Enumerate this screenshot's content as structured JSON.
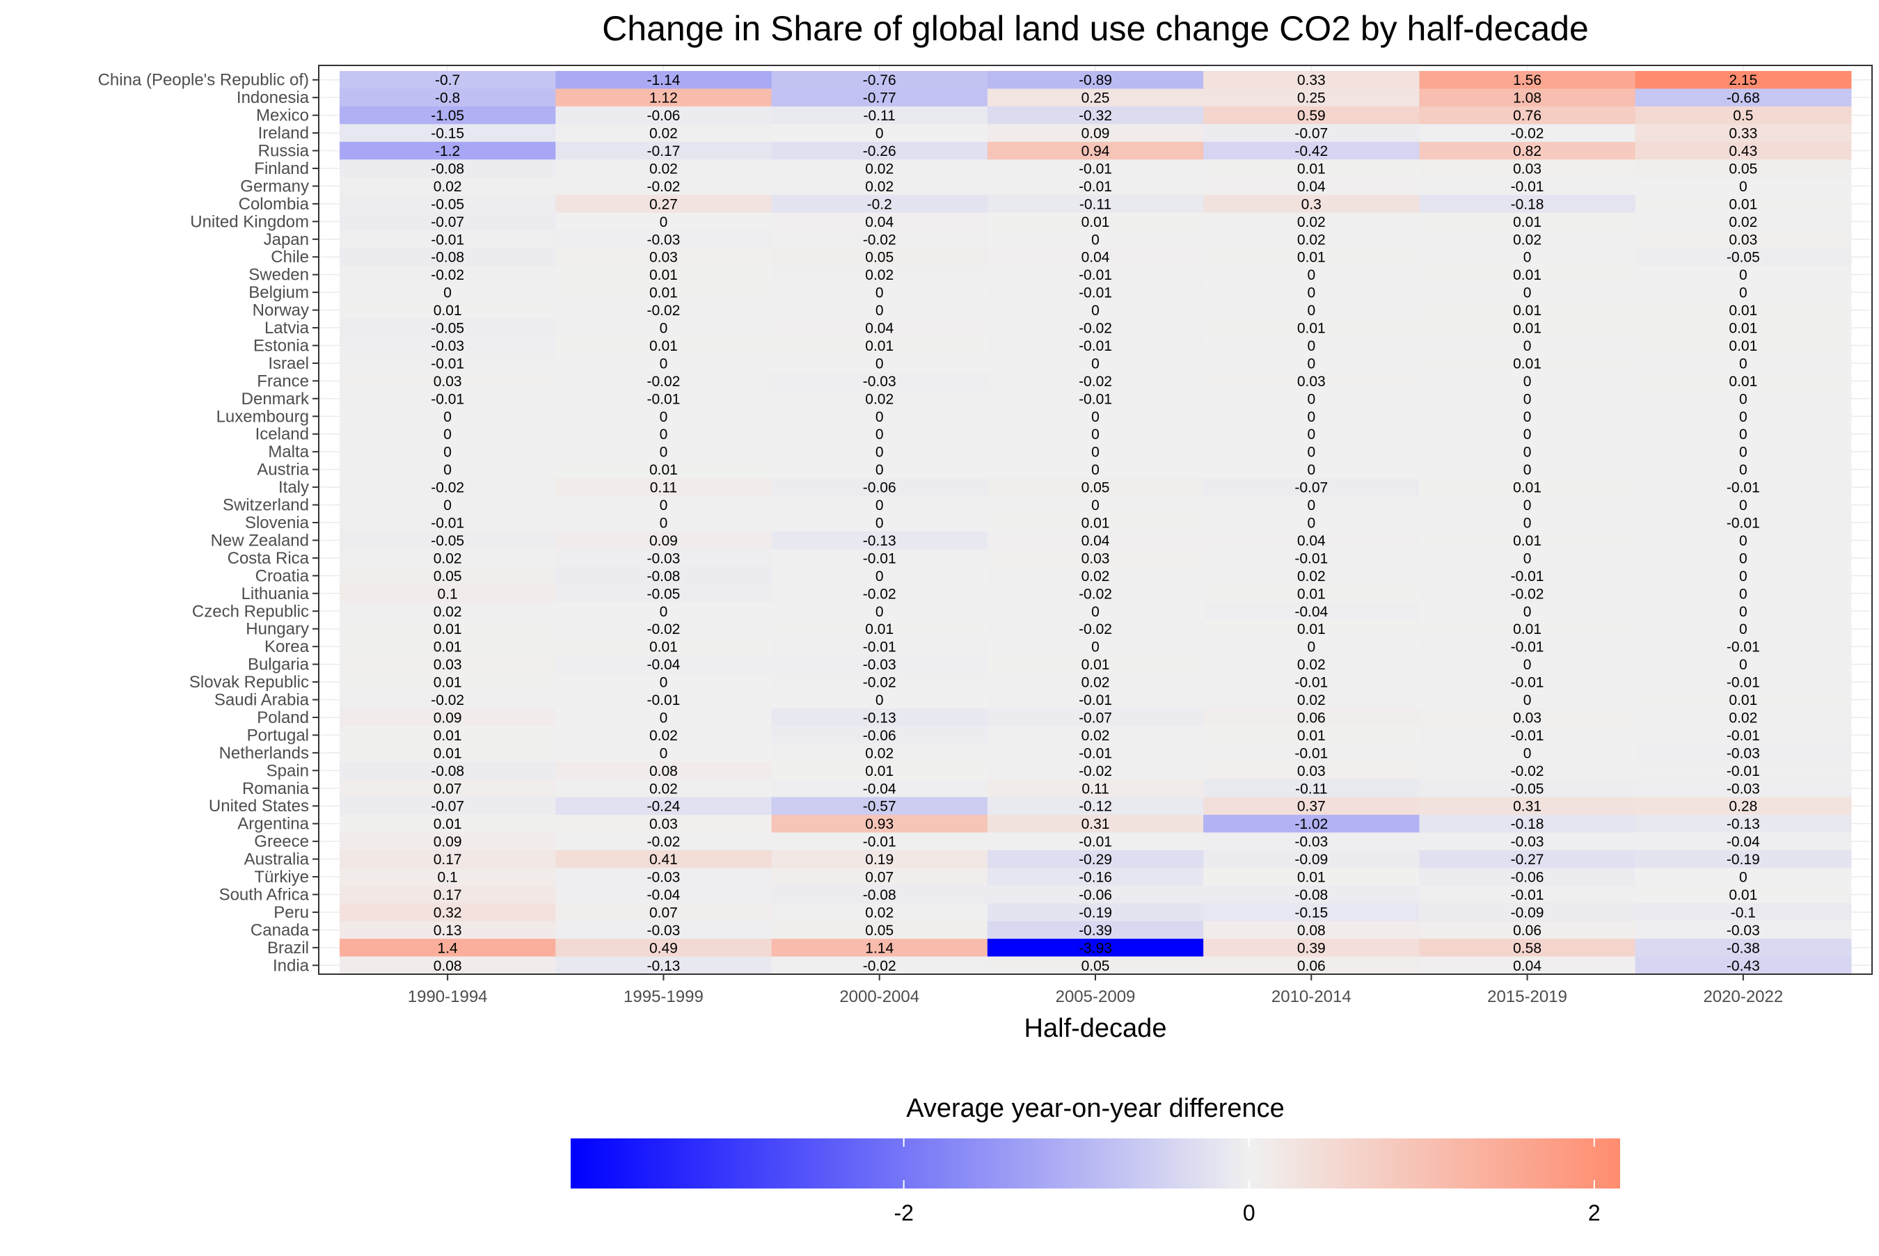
{
  "chart_data": {
    "type": "heatmap",
    "title": "Change in Share of global land use change CO2 by half-decade",
    "xlabel": "Half-decade",
    "ylabel": "",
    "x": [
      "1990-1994",
      "1995-1999",
      "2000-2004",
      "2005-2009",
      "2010-2014",
      "2015-2019",
      "2020-2022"
    ],
    "y": [
      "China (People's Republic of)",
      "Indonesia",
      "Mexico",
      "Ireland",
      "Russia",
      "Finland",
      "Germany",
      "Colombia",
      "United Kingdom",
      "Japan",
      "Chile",
      "Sweden",
      "Belgium",
      "Norway",
      "Latvia",
      "Estonia",
      "Israel",
      "France",
      "Denmark",
      "Luxembourg",
      "Iceland",
      "Malta",
      "Austria",
      "Italy",
      "Switzerland",
      "Slovenia",
      "New Zealand",
      "Costa Rica",
      "Croatia",
      "Lithuania",
      "Czech Republic",
      "Hungary",
      "Korea",
      "Bulgaria",
      "Slovak Republic",
      "Saudi Arabia",
      "Poland",
      "Portugal",
      "Netherlands",
      "Spain",
      "Romania",
      "United States",
      "Argentina",
      "Greece",
      "Australia",
      "Türkiye",
      "South Africa",
      "Peru",
      "Canada",
      "Brazil",
      "India"
    ],
    "values": [
      [
        -0.7,
        -1.14,
        -0.76,
        -0.89,
        0.33,
        1.56,
        2.15
      ],
      [
        -0.8,
        1.12,
        -0.77,
        0.25,
        0.25,
        1.08,
        -0.68
      ],
      [
        -1.05,
        -0.06,
        -0.11,
        -0.32,
        0.59,
        0.76,
        0.5
      ],
      [
        -0.15,
        0.02,
        0,
        0.09,
        -0.07,
        -0.02,
        0.33
      ],
      [
        -1.2,
        -0.17,
        -0.26,
        0.94,
        -0.42,
        0.82,
        0.43
      ],
      [
        -0.08,
        0.02,
        0.02,
        -0.01,
        0.01,
        0.03,
        0.05
      ],
      [
        0.02,
        -0.02,
        0.02,
        -0.01,
        0.04,
        -0.01,
        0
      ],
      [
        -0.05,
        0.27,
        -0.2,
        -0.11,
        0.3,
        -0.18,
        0.01
      ],
      [
        -0.07,
        0,
        0.04,
        0.01,
        0.02,
        0.01,
        0.02
      ],
      [
        -0.01,
        -0.03,
        -0.02,
        0,
        0.02,
        0.02,
        0.03
      ],
      [
        -0.08,
        0.03,
        0.05,
        0.04,
        0.01,
        0,
        -0.05
      ],
      [
        -0.02,
        0.01,
        0.02,
        -0.01,
        0,
        0.01,
        0
      ],
      [
        0,
        0.01,
        0,
        -0.01,
        0,
        0,
        0
      ],
      [
        0.01,
        -0.02,
        0,
        0,
        0,
        0.01,
        0.01
      ],
      [
        -0.05,
        0,
        0.04,
        -0.02,
        0.01,
        0.01,
        0.01
      ],
      [
        -0.03,
        0.01,
        0.01,
        -0.01,
        0,
        0,
        0.01
      ],
      [
        -0.01,
        0,
        0,
        0,
        0,
        0.01,
        0
      ],
      [
        0.03,
        -0.02,
        -0.03,
        -0.02,
        0.03,
        0,
        0.01
      ],
      [
        -0.01,
        -0.01,
        0.02,
        -0.01,
        0,
        0,
        0
      ],
      [
        0,
        0,
        0,
        0,
        0,
        0,
        0
      ],
      [
        0,
        0,
        0,
        0,
        0,
        0,
        0
      ],
      [
        0,
        0,
        0,
        0,
        0,
        0,
        0
      ],
      [
        0,
        0.01,
        0,
        0,
        0,
        0,
        0
      ],
      [
        -0.02,
        0.11,
        -0.06,
        0.05,
        -0.07,
        0.01,
        -0.01
      ],
      [
        0,
        0,
        0,
        0,
        0,
        0,
        0
      ],
      [
        -0.01,
        0,
        0,
        0.01,
        0,
        0,
        -0.01
      ],
      [
        -0.05,
        0.09,
        -0.13,
        0.04,
        0.04,
        0.01,
        0
      ],
      [
        0.02,
        -0.03,
        -0.01,
        0.03,
        -0.01,
        0,
        0
      ],
      [
        0.05,
        -0.08,
        0,
        0.02,
        0.02,
        -0.01,
        0
      ],
      [
        0.1,
        -0.05,
        -0.02,
        -0.02,
        0.01,
        -0.02,
        0
      ],
      [
        0.02,
        0,
        0,
        0,
        -0.04,
        0,
        0
      ],
      [
        0.01,
        -0.02,
        0.01,
        -0.02,
        0.01,
        0.01,
        0
      ],
      [
        0.01,
        0.01,
        -0.01,
        0,
        0,
        -0.01,
        -0.01
      ],
      [
        0.03,
        -0.04,
        -0.03,
        0.01,
        0.02,
        0,
        0
      ],
      [
        0.01,
        0,
        -0.02,
        0.02,
        -0.01,
        -0.01,
        -0.01
      ],
      [
        -0.02,
        -0.01,
        0,
        -0.01,
        0.02,
        0,
        0.01
      ],
      [
        0.09,
        0,
        -0.13,
        -0.07,
        0.06,
        0.03,
        0.02
      ],
      [
        0.01,
        0.02,
        -0.06,
        0.02,
        0.01,
        -0.01,
        -0.01
      ],
      [
        0.01,
        0,
        0.02,
        -0.01,
        -0.01,
        0,
        -0.03
      ],
      [
        -0.08,
        0.08,
        0.01,
        -0.02,
        0.03,
        -0.02,
        -0.01
      ],
      [
        0.07,
        0.02,
        -0.04,
        0.11,
        -0.11,
        -0.05,
        -0.03
      ],
      [
        -0.07,
        -0.24,
        -0.57,
        -0.12,
        0.37,
        0.31,
        0.28
      ],
      [
        0.01,
        0.03,
        0.93,
        0.31,
        -1.02,
        -0.18,
        -0.13
      ],
      [
        0.09,
        -0.02,
        -0.01,
        -0.01,
        -0.03,
        -0.03,
        -0.04
      ],
      [
        0.17,
        0.41,
        0.19,
        -0.29,
        -0.09,
        -0.27,
        -0.19
      ],
      [
        0.1,
        -0.03,
        0.07,
        -0.16,
        0.01,
        -0.06,
        0
      ],
      [
        0.17,
        -0.04,
        -0.08,
        -0.06,
        -0.08,
        -0.01,
        0.01
      ],
      [
        0.32,
        0.07,
        0.02,
        -0.19,
        -0.15,
        -0.09,
        -0.1
      ],
      [
        0.13,
        -0.03,
        0.05,
        -0.39,
        0.08,
        0.06,
        -0.03
      ],
      [
        1.4,
        0.49,
        1.14,
        -3.93,
        0.39,
        0.58,
        -0.38
      ],
      [
        0.08,
        -0.13,
        -0.02,
        0.05,
        0.06,
        0.04,
        -0.43
      ]
    ],
    "legend": {
      "title": "Average year-on-year difference",
      "position": "bottom",
      "min": -3.93,
      "max": 2.15,
      "ticks": [
        -2,
        0,
        2
      ],
      "low_color": "#0000ff",
      "mid_color": "#f0f0f0",
      "high_color": "#ff8c6f"
    },
    "grid": true
  }
}
